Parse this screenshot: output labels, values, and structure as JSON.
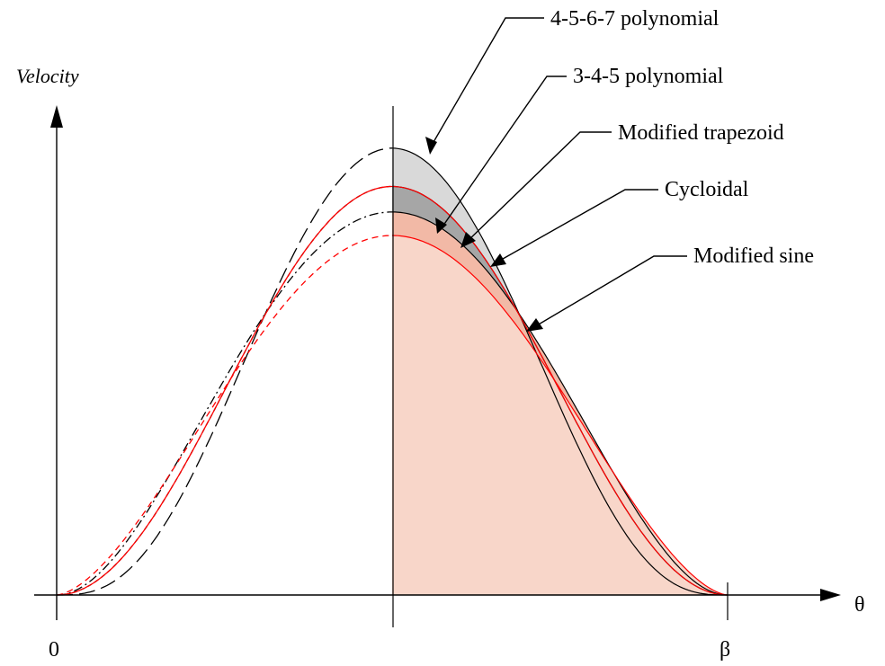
{
  "chart_data": {
    "type": "line",
    "ylabel": "Velocity",
    "xlabel": "θ",
    "x_ticks": [
      "0",
      "β"
    ],
    "x_range": [
      0,
      1
    ],
    "y_range": [
      0,
      2.0
    ],
    "series": [
      {
        "name": "4-5-6-7 polynomial",
        "peak": 2.1875,
        "style": "long-dash",
        "color": "#000000",
        "fill": "#d9d9d9"
      },
      {
        "name": "3-4-5 polynomial",
        "peak": 1.875,
        "style": "dash-dot",
        "color": "#000000",
        "fill": "#f2b9a6"
      },
      {
        "name": "Modified trapezoid",
        "peak": 2.0,
        "style": "short-dash",
        "color": "#000000",
        "fill": "#ffffff"
      },
      {
        "name": "Cycloidal",
        "peak": 2.0,
        "style": "solid",
        "color": "#ff0000",
        "fill": "#a6a6a6"
      },
      {
        "name": "Modified sine",
        "peak": 1.76,
        "style": "dash",
        "color": "#ff0000",
        "fill": "#f8d6c9"
      }
    ],
    "annotations": [
      "4-5-6-7 polynomial",
      "3-4-5 polynomial",
      "Modified trapezoid",
      "Cycloidal",
      "Modified sine"
    ]
  }
}
